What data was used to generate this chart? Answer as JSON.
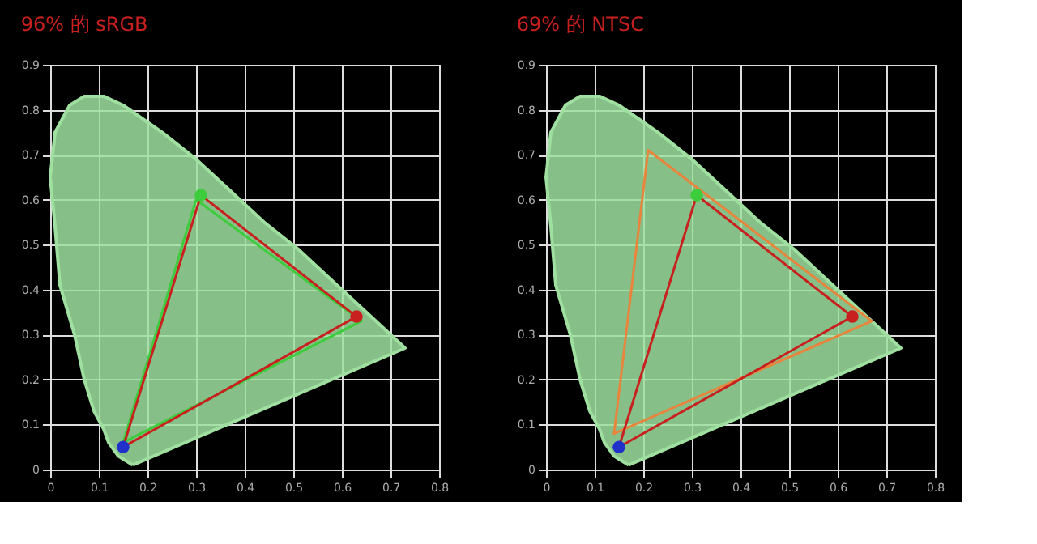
{
  "chart_data": [
    {
      "type": "line",
      "title": "96% 的 sRGB",
      "xlim": [
        0,
        0.8
      ],
      "ylim": [
        0,
        0.9
      ],
      "xticks": [
        0,
        0.1,
        0.2,
        0.3,
        0.4,
        0.5,
        0.6,
        0.7,
        0.8
      ],
      "yticks": [
        0,
        0.1,
        0.2,
        0.3,
        0.4,
        0.5,
        0.6,
        0.7,
        0.8,
        0.9
      ],
      "grid": true,
      "legend": false,
      "series": [
        {
          "type": "area",
          "color": "#9fe0a0",
          "x": [
            0.17,
            0.14,
            0.12,
            0.11,
            0.09,
            0.07,
            0.05,
            0.02,
            0.01,
            0.0,
            0.01,
            0.04,
            0.07,
            0.11,
            0.15,
            0.23,
            0.3,
            0.37,
            0.44,
            0.51,
            0.58,
            0.63,
            0.69,
            0.73,
            0.17
          ],
          "values": [
            0.01,
            0.03,
            0.06,
            0.09,
            0.13,
            0.2,
            0.3,
            0.41,
            0.54,
            0.65,
            0.75,
            0.81,
            0.83,
            0.83,
            0.81,
            0.75,
            0.69,
            0.62,
            0.55,
            0.49,
            0.42,
            0.37,
            0.31,
            0.27,
            0.01
          ]
        },
        {
          "color": "#3ccc3c",
          "x": [
            0.15,
            0.3,
            0.64
          ],
          "values": [
            0.06,
            0.6,
            0.33
          ]
        },
        {
          "color": "#3ccc3c",
          "x": [
            0.15,
            0.64
          ],
          "values": [
            0.06,
            0.33
          ]
        },
        {
          "color": "#c8201e",
          "x": [
            0.15,
            0.31,
            0.63
          ],
          "values": [
            0.05,
            0.61,
            0.34
          ]
        },
        {
          "color": "#c8201e",
          "x": [
            0.15,
            0.63
          ],
          "values": [
            0.05,
            0.34
          ]
        },
        {
          "type": "scatter",
          "marker": "circle",
          "colors": [
            "#c8201e",
            "#3ccc3c",
            "#2030c8"
          ],
          "x": [
            0.63,
            0.31,
            0.15
          ],
          "values": [
            0.34,
            0.61,
            0.05
          ]
        }
      ]
    },
    {
      "type": "line",
      "title": "69% 的 NTSC",
      "xlim": [
        0,
        0.8
      ],
      "ylim": [
        0,
        0.9
      ],
      "xticks": [
        0,
        0.1,
        0.2,
        0.3,
        0.4,
        0.5,
        0.6,
        0.7,
        0.8
      ],
      "yticks": [
        0,
        0.1,
        0.2,
        0.3,
        0.4,
        0.5,
        0.6,
        0.7,
        0.8,
        0.9
      ],
      "grid": true,
      "legend": false,
      "series": [
        {
          "type": "area",
          "color": "#9fe0a0",
          "x": [
            0.17,
            0.14,
            0.12,
            0.11,
            0.09,
            0.07,
            0.05,
            0.02,
            0.01,
            0.0,
            0.01,
            0.04,
            0.07,
            0.11,
            0.15,
            0.23,
            0.3,
            0.37,
            0.44,
            0.51,
            0.58,
            0.63,
            0.69,
            0.73,
            0.17
          ],
          "values": [
            0.01,
            0.03,
            0.06,
            0.09,
            0.13,
            0.2,
            0.3,
            0.41,
            0.54,
            0.65,
            0.75,
            0.81,
            0.83,
            0.83,
            0.81,
            0.75,
            0.69,
            0.62,
            0.55,
            0.49,
            0.42,
            0.37,
            0.31,
            0.27,
            0.01
          ]
        },
        {
          "color": "#e8843c",
          "x": [
            0.14,
            0.21,
            0.67
          ],
          "values": [
            0.08,
            0.71,
            0.33
          ]
        },
        {
          "color": "#e8843c",
          "x": [
            0.14,
            0.67
          ],
          "values": [
            0.08,
            0.33
          ]
        },
        {
          "color": "#c8201e",
          "x": [
            0.15,
            0.31,
            0.63
          ],
          "values": [
            0.05,
            0.61,
            0.34
          ]
        },
        {
          "color": "#c8201e",
          "x": [
            0.15,
            0.63
          ],
          "values": [
            0.05,
            0.34
          ]
        },
        {
          "type": "scatter",
          "marker": "circle",
          "colors": [
            "#c8201e",
            "#3ccc3c",
            "#2030c8"
          ],
          "x": [
            0.63,
            0.31,
            0.15
          ],
          "values": [
            0.34,
            0.61,
            0.05
          ]
        }
      ]
    }
  ]
}
